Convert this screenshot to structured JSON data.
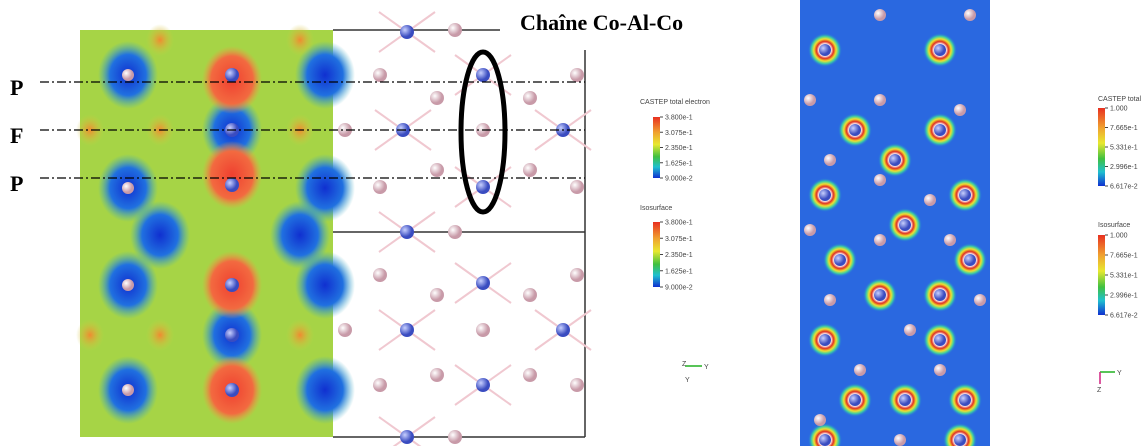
{
  "annotations": {
    "chain_label": "Chaîne Co-Al-Co",
    "row_labels": [
      "P",
      "F",
      "P"
    ]
  },
  "legends": [
    {
      "title": "CASTEP total electron",
      "ticks": [
        "3.800e-1",
        "3.075e-1",
        "2.350e-1",
        "1.625e-1",
        "9.000e-2"
      ]
    },
    {
      "title": "Isosurface",
      "ticks": [
        "3.800e-1",
        "3.075e-1",
        "2.350e-1",
        "1.625e-1",
        "9.000e-2"
      ]
    },
    {
      "title": "CASTEP total electron",
      "ticks": [
        "1.000",
        "7.665e-1",
        "5.331e-1",
        "2.996e-1",
        "6.617e-2"
      ]
    },
    {
      "title": "Isosurface",
      "ticks": [
        "1.000",
        "7.665e-1",
        "5.331e-1",
        "2.996e-1",
        "6.617e-2"
      ]
    }
  ],
  "axis_icons": [
    {
      "top": "Z",
      "right": "Y",
      "bottom": "Y"
    },
    {
      "right": "Y",
      "bottom": "Z"
    }
  ]
}
